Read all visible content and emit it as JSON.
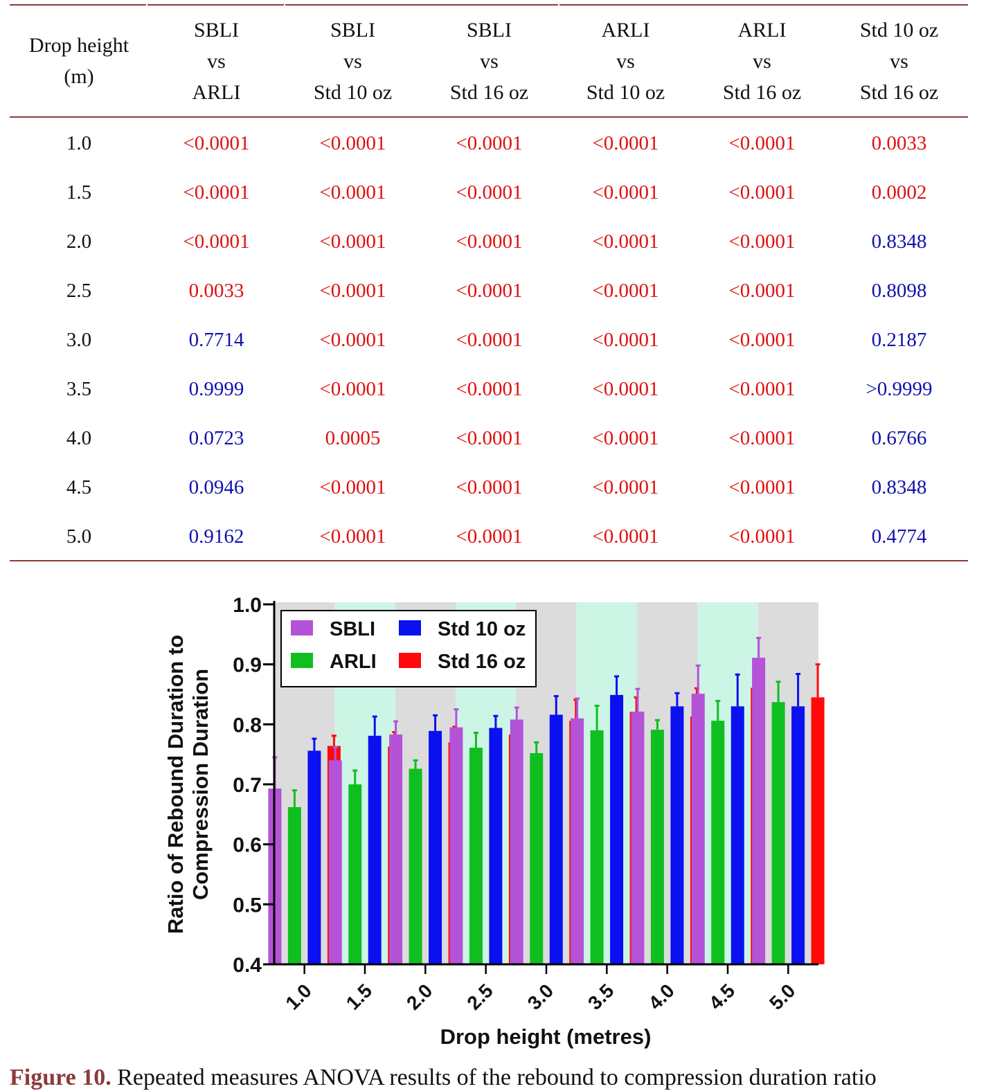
{
  "table": {
    "headers": [
      [
        "Drop height",
        "(m)"
      ],
      [
        "SBLI",
        "vs",
        "ARLI"
      ],
      [
        "SBLI",
        "vs",
        "Std 10 oz"
      ],
      [
        "SBLI",
        "vs",
        "Std 16 oz"
      ],
      [
        "ARLI",
        "vs",
        "Std 10 oz"
      ],
      [
        "ARLI",
        "vs",
        "Std 16 oz"
      ],
      [
        "Std 10 oz",
        "vs",
        "Std 16 oz"
      ]
    ],
    "rows": [
      {
        "height": "1.0",
        "values": [
          "<0.0001",
          "<0.0001",
          "<0.0001",
          "<0.0001",
          "<0.0001",
          "0.0033"
        ],
        "significant": [
          true,
          true,
          true,
          true,
          true,
          true
        ]
      },
      {
        "height": "1.5",
        "values": [
          "<0.0001",
          "<0.0001",
          "<0.0001",
          "<0.0001",
          "<0.0001",
          "0.0002"
        ],
        "significant": [
          true,
          true,
          true,
          true,
          true,
          true
        ]
      },
      {
        "height": "2.0",
        "values": [
          "<0.0001",
          "<0.0001",
          "<0.0001",
          "<0.0001",
          "<0.0001",
          "0.8348"
        ],
        "significant": [
          true,
          true,
          true,
          true,
          true,
          false
        ]
      },
      {
        "height": "2.5",
        "values": [
          "0.0033",
          "<0.0001",
          "<0.0001",
          "<0.0001",
          "<0.0001",
          "0.8098"
        ],
        "significant": [
          true,
          true,
          true,
          true,
          true,
          false
        ]
      },
      {
        "height": "3.0",
        "values": [
          "0.7714",
          "<0.0001",
          "<0.0001",
          "<0.0001",
          "<0.0001",
          "0.2187"
        ],
        "significant": [
          false,
          true,
          true,
          true,
          true,
          false
        ]
      },
      {
        "height": "3.5",
        "values": [
          "0.9999",
          "<0.0001",
          "<0.0001",
          "<0.0001",
          "<0.0001",
          ">0.9999"
        ],
        "significant": [
          false,
          true,
          true,
          true,
          true,
          false
        ]
      },
      {
        "height": "4.0",
        "values": [
          "0.0723",
          "0.0005",
          "<0.0001",
          "<0.0001",
          "<0.0001",
          "0.6766"
        ],
        "significant": [
          false,
          true,
          true,
          true,
          true,
          false
        ]
      },
      {
        "height": "4.5",
        "values": [
          "0.0946",
          "<0.0001",
          "<0.0001",
          "<0.0001",
          "<0.0001",
          "0.8348"
        ],
        "significant": [
          false,
          true,
          true,
          true,
          true,
          false
        ]
      },
      {
        "height": "5.0",
        "values": [
          "0.9162",
          "<0.0001",
          "<0.0001",
          "<0.0001",
          "<0.0001",
          "0.4774"
        ],
        "significant": [
          false,
          true,
          true,
          true,
          true,
          false
        ]
      }
    ],
    "colors": {
      "significant": "#e01010",
      "not_significant": "#1010b0",
      "rule": "#8b3a3a"
    }
  },
  "chart_data": {
    "type": "bar",
    "title": "",
    "xlabel": "Drop height (metres)",
    "ylabel": "Ratio of Rebound Duration to Compression Duration",
    "ylabel_lines": [
      "Ratio of Rebound Duration to",
      "Compression Duration"
    ],
    "ylim": [
      0.4,
      1.0
    ],
    "yticks": [
      "0.4",
      "0.5",
      "0.6",
      "0.7",
      "0.8",
      "0.9",
      "1.0"
    ],
    "categories": [
      "1.0",
      "1.5",
      "2.0",
      "2.5",
      "3.0",
      "3.5",
      "4.0",
      "4.5",
      "5.0"
    ],
    "legend_position": "top-left",
    "grid": false,
    "band_colors": [
      "#dcdcdc",
      "#cdf5e6"
    ],
    "series": [
      {
        "name": "SBLI",
        "color": "#b452d8",
        "values": [
          0.693,
          0.74,
          0.783,
          0.795,
          0.808,
          0.81,
          0.821,
          0.851,
          0.911
        ],
        "errors": [
          0.052,
          0.022,
          0.022,
          0.03,
          0.02,
          0.033,
          0.038,
          0.047,
          0.033
        ]
      },
      {
        "name": "ARLI",
        "color": "#0fbf1f",
        "values": [
          0.662,
          0.7,
          0.726,
          0.761,
          0.752,
          0.79,
          0.791,
          0.806,
          0.837
        ],
        "errors": [
          0.028,
          0.023,
          0.014,
          0.025,
          0.018,
          0.041,
          0.016,
          0.033,
          0.034
        ]
      },
      {
        "name": "Std 10 oz",
        "color": "#0a10f0",
        "values": [
          0.756,
          0.781,
          0.789,
          0.794,
          0.816,
          0.849,
          0.83,
          0.83,
          0.83
        ],
        "errors": [
          0.02,
          0.032,
          0.026,
          0.02,
          0.031,
          0.031,
          0.022,
          0.053,
          0.054
        ]
      },
      {
        "name": "Std 16 oz",
        "color": "#ff0a0a",
        "values": [
          0.764,
          0.763,
          0.77,
          0.783,
          0.806,
          0.821,
          0.813,
          0.861,
          0.845
        ],
        "errors": [
          0.017,
          0.024,
          0.026,
          0.014,
          0.035,
          0.024,
          0.047,
          0.038,
          0.055
        ]
      }
    ]
  },
  "caption": {
    "label": "Figure 10.",
    "text": "Repeated measures ANOVA results of the rebound to compression duration ratio"
  }
}
